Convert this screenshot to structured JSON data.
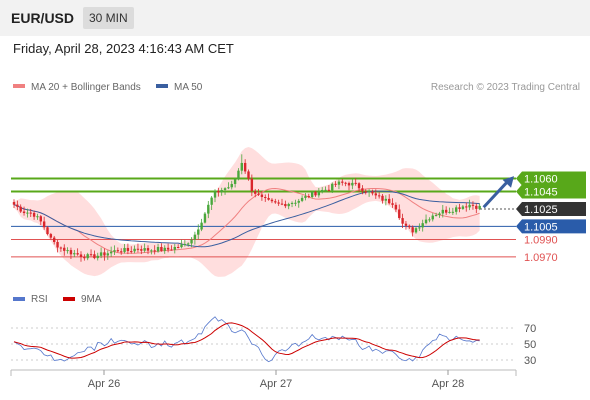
{
  "header": {
    "pair": "EUR/USD",
    "interval": "30 MIN"
  },
  "timestamp": "Friday, April 28, 2023 4:16:43 AM CET",
  "colors": {
    "up": "#4aa73c",
    "down": "#d9262c",
    "ma20": "#f08080",
    "band": "#ffd3d3",
    "ma50": "#3a5fa0",
    "resistance": "#58a81a",
    "support_blue": "#2a5caa",
    "support_red": "#e05252",
    "current": "#333333",
    "rsi": "#5577cc",
    "rsi_ma": "#cc0000"
  },
  "chart_data": [
    {
      "type": "candlestick",
      "legend": [
        {
          "label": "MA 20 + Bollinger Bands",
          "color": "#f08080"
        },
        {
          "label": "MA 50",
          "color": "#3a5fa0"
        }
      ],
      "copyright": "Research © 2023 Trading Central",
      "x_ticks": [
        "Apr 26",
        "Apr 27",
        "Apr 28"
      ],
      "ylim": [
        1.0955,
        1.115
      ],
      "levels": [
        {
          "value": 1.106,
          "label": "1.1060",
          "kind": "resistance"
        },
        {
          "value": 1.1045,
          "label": "1.1045",
          "kind": "resistance"
        },
        {
          "value": 1.1025,
          "label": "1.1025",
          "kind": "current"
        },
        {
          "value": 1.1005,
          "label": "1.1005",
          "kind": "support_blue"
        },
        {
          "value": 1.099,
          "label": "1.0990",
          "kind": "support_red"
        },
        {
          "value": 1.097,
          "label": "1.0970",
          "kind": "support_red"
        }
      ],
      "price_anchors": [
        1.103,
        1.1022,
        1.102,
        1.1008,
        1.0988,
        1.098,
        1.0975,
        1.0972,
        1.097,
        1.0972,
        1.0975,
        1.0978,
        1.0977,
        1.098,
        1.0978,
        1.0979,
        1.0978,
        1.0981,
        1.0984,
        1.0995,
        1.1018,
        1.1042,
        1.1048,
        1.1052,
        1.108,
        1.1048,
        1.1037,
        1.1032,
        1.103,
        1.1032,
        1.1035,
        1.104,
        1.1045,
        1.1048,
        1.1054,
        1.1055,
        1.1052,
        1.1046,
        1.104,
        1.1035,
        1.1032,
        1.1005,
        1.1,
        1.101,
        1.1018,
        1.1022,
        1.1024,
        1.1028,
        1.103,
        1.1027
      ],
      "rsi": {
        "legend": [
          {
            "label": "RSI",
            "color": "#5577cc"
          },
          {
            "label": "9MA",
            "color": "#cc0000"
          }
        ],
        "y_ticks": [
          70,
          50,
          30
        ],
        "ylim": [
          20,
          90
        ]
      }
    }
  ]
}
